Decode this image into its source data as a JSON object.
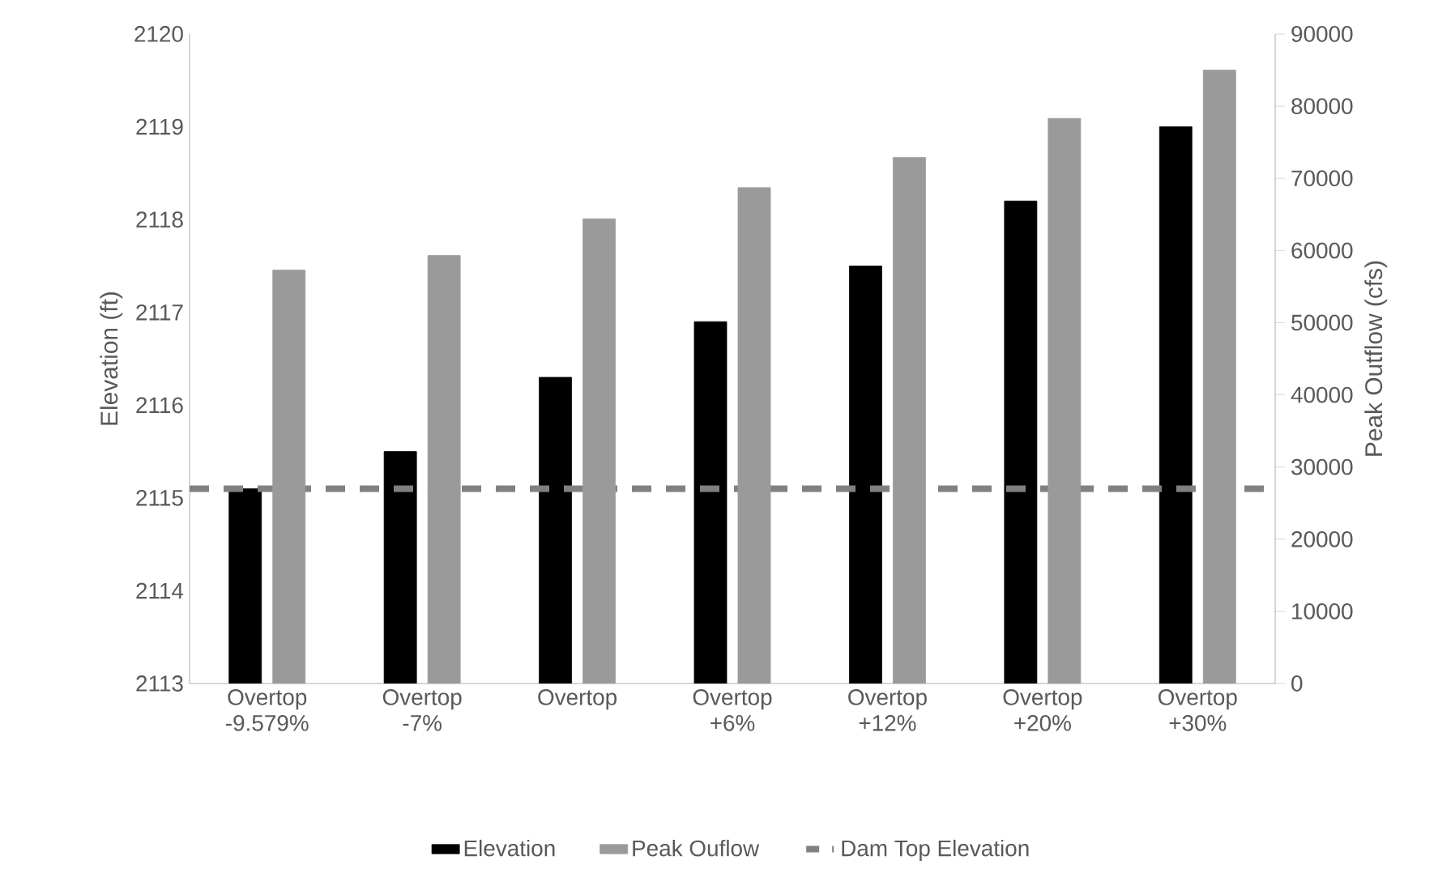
{
  "chart_data": {
    "type": "bar",
    "ylabel": "Elevation (ft)",
    "y2label": "Peak Outflow (cfs)",
    "categories": [
      "Overtop -9.579%",
      "Overtop -7%",
      "Overtop",
      "Overtop +6%",
      "Overtop +12%",
      "Overtop +20%",
      "Overtop +30%"
    ],
    "series": [
      {
        "name": "Elevation",
        "color": "#000000",
        "values": [
          2115.1,
          2115.5,
          2116.3,
          2116.9,
          2117.5,
          2118.2,
          2119.0
        ]
      },
      {
        "name": "Peak Ouflow",
        "color": "#9a9a9a",
        "axis": "y2",
        "values": [
          57300,
          59300,
          64400,
          68700,
          72900,
          78300,
          85000
        ]
      }
    ],
    "ylim": [
      2113,
      2120
    ],
    "yticks": [
      2113,
      2114,
      2115,
      2116,
      2117,
      2118,
      2119,
      2120
    ],
    "y2lim": [
      0,
      90000
    ],
    "y2ticks": [
      0,
      10000,
      20000,
      30000,
      40000,
      50000,
      60000,
      70000,
      80000,
      90000
    ],
    "ref_lines": [
      {
        "axis": "y",
        "value": 2115.1,
        "label": "Dam Top Elevation",
        "color": "#808080",
        "line_style": "dashed"
      }
    ],
    "legend": "bottom"
  }
}
